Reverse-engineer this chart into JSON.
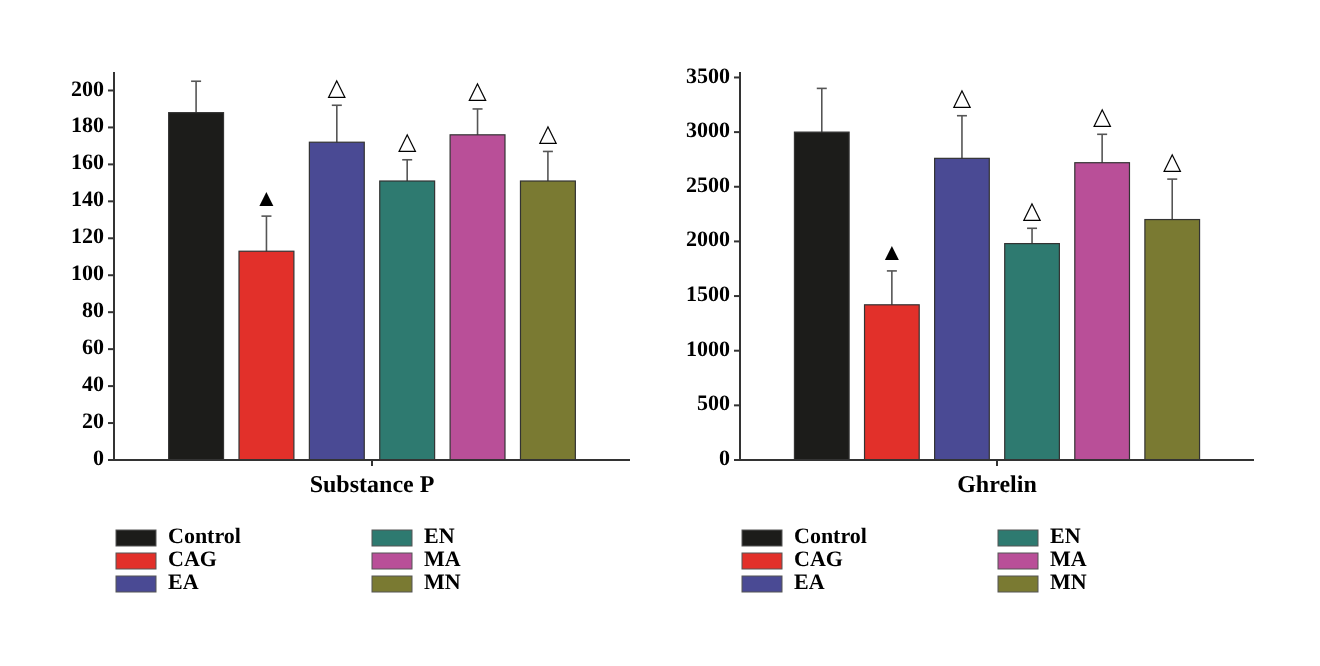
{
  "chart_data": [
    {
      "type": "bar",
      "categories": [
        "Substance P"
      ],
      "ylim": [
        0,
        210
      ],
      "yticks": [
        0,
        20,
        40,
        60,
        80,
        100,
        120,
        140,
        160,
        180,
        200
      ],
      "legend": "bottom",
      "grid": false,
      "series": [
        {
          "name": "Control",
          "color": "#1c1c1a",
          "values": [
            188
          ],
          "errors": [
            17
          ]
        },
        {
          "name": "CAG",
          "color": "#e2302a",
          "values": [
            113
          ],
          "errors": [
            19
          ]
        },
        {
          "name": "EA",
          "color": "#4a4a94",
          "values": [
            172
          ],
          "errors": [
            20
          ]
        },
        {
          "name": "EN",
          "color": "#2e7a70",
          "values": [
            151
          ],
          "errors": [
            11.5
          ]
        },
        {
          "name": "MA",
          "color": "#b94f98",
          "values": [
            176
          ],
          "errors": [
            14
          ]
        },
        {
          "name": "MN",
          "color": "#7a7a32",
          "values": [
            151
          ],
          "errors": [
            16
          ]
        }
      ],
      "annotations": [
        "▲",
        "△",
        "△",
        "△",
        "△"
      ]
    },
    {
      "type": "bar",
      "categories": [
        "Ghrelin"
      ],
      "ylim": [
        0,
        3550
      ],
      "yticks": [
        0,
        500,
        1000,
        1500,
        2000,
        2500,
        3000,
        3500
      ],
      "legend": "bottom",
      "grid": false,
      "series": [
        {
          "name": "Control",
          "color": "#1c1c1a",
          "values": [
            3000
          ],
          "errors": [
            400
          ]
        },
        {
          "name": "CAG",
          "color": "#e2302a",
          "values": [
            1420
          ],
          "errors": [
            310
          ]
        },
        {
          "name": "EA",
          "color": "#4a4a94",
          "values": [
            2760
          ],
          "errors": [
            390
          ]
        },
        {
          "name": "EN",
          "color": "#2e7a70",
          "values": [
            1980
          ],
          "errors": [
            140
          ]
        },
        {
          "name": "MA",
          "color": "#b94f98",
          "values": [
            2720
          ],
          "errors": [
            260
          ]
        },
        {
          "name": "MN",
          "color": "#7a7a32",
          "values": [
            2200
          ],
          "errors": [
            370
          ]
        }
      ],
      "annotations": [
        "▲",
        "△",
        "△",
        "△",
        "△"
      ]
    }
  ]
}
